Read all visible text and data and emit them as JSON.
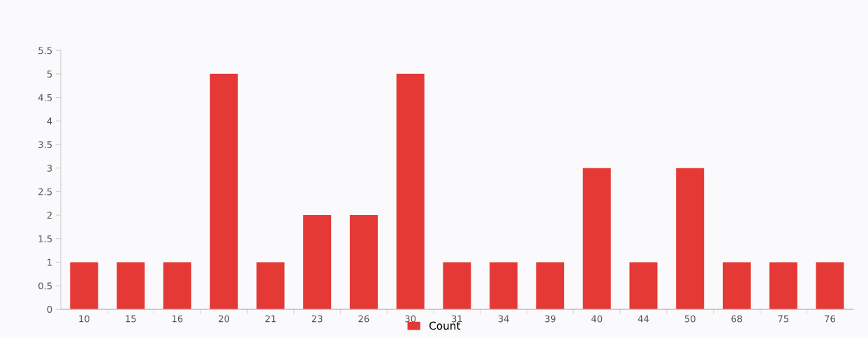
{
  "chart_data": {
    "type": "bar",
    "categories": [
      "10",
      "15",
      "16",
      "20",
      "21",
      "23",
      "26",
      "30",
      "31",
      "34",
      "39",
      "40",
      "44",
      "50",
      "68",
      "75",
      "76"
    ],
    "series": [
      {
        "name": "Count",
        "color": "#e53935",
        "values": [
          1,
          1,
          1,
          5,
          1,
          2,
          2,
          5,
          1,
          1,
          1,
          3,
          1,
          3,
          1,
          1,
          1
        ]
      }
    ],
    "ylim": [
      0,
      5.5
    ],
    "yticks": [
      0,
      0.5,
      1,
      1.5,
      2,
      2.5,
      3,
      3.5,
      4,
      4.5,
      5,
      5.5
    ],
    "grid": false,
    "legend": "bottom"
  }
}
